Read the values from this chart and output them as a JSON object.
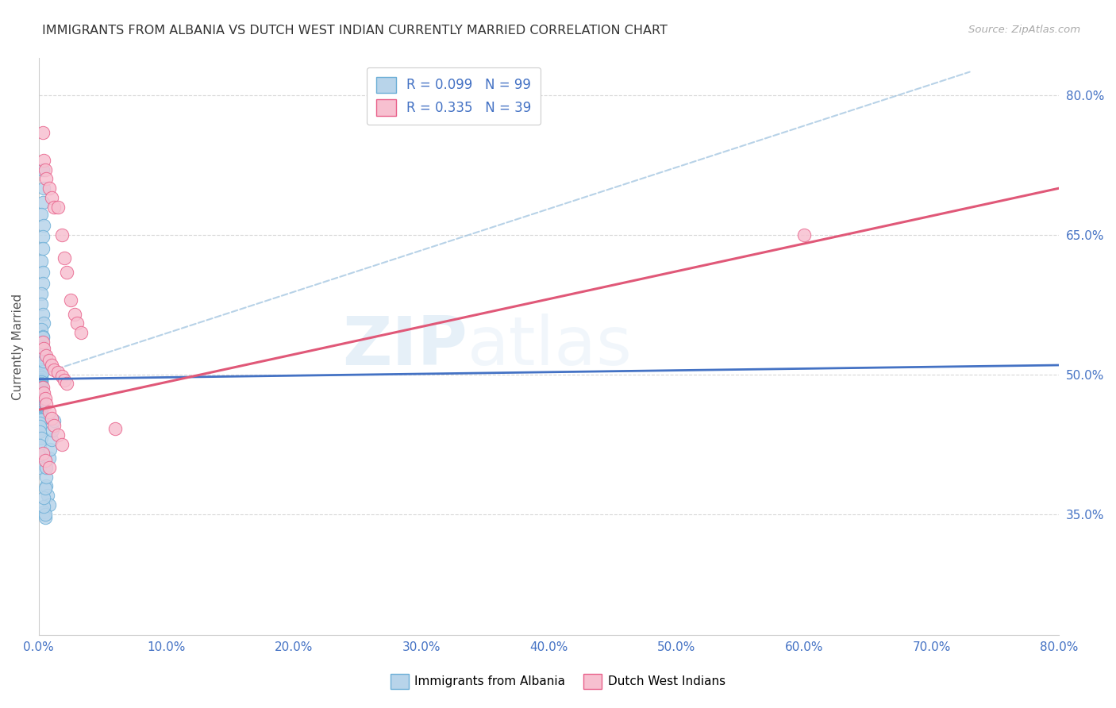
{
  "title": "IMMIGRANTS FROM ALBANIA VS DUTCH WEST INDIAN CURRENTLY MARRIED CORRELATION CHART",
  "source": "Source: ZipAtlas.com",
  "ylabel": "Currently Married",
  "xlim": [
    0.0,
    0.8
  ],
  "ylim": [
    0.22,
    0.84
  ],
  "yticks": [
    0.35,
    0.5,
    0.65,
    0.8
  ],
  "xticks": [
    0.0,
    0.1,
    0.2,
    0.3,
    0.4,
    0.5,
    0.6,
    0.7,
    0.8
  ],
  "legend_r1": "R = 0.099",
  "legend_n1": "N = 99",
  "legend_r2": "R = 0.335",
  "legend_n2": "N = 39",
  "color_albania_fill": "#b8d4ea",
  "color_albania_edge": "#6baed6",
  "color_dutch_fill": "#f7c0d0",
  "color_dutch_edge": "#e8608a",
  "color_albania_line": "#4472c4",
  "color_dutch_line": "#e05878",
  "color_dashed": "#a0c4e0",
  "watermark_zip": "ZIP",
  "watermark_atlas": "atlas",
  "albania_x": [
    0.003,
    0.004,
    0.003,
    0.002,
    0.004,
    0.003,
    0.003,
    0.002,
    0.003,
    0.003,
    0.002,
    0.002,
    0.003,
    0.004,
    0.002,
    0.003,
    0.002,
    0.002,
    0.002,
    0.002,
    0.002,
    0.003,
    0.002,
    0.002,
    0.001,
    0.002,
    0.002,
    0.002,
    0.002,
    0.002,
    0.003,
    0.002,
    0.002,
    0.002,
    0.002,
    0.002,
    0.001,
    0.002,
    0.002,
    0.002,
    0.002,
    0.002,
    0.002,
    0.002,
    0.002,
    0.002,
    0.001,
    0.001,
    0.002,
    0.002,
    0.001,
    0.001,
    0.002,
    0.002,
    0.002,
    0.002,
    0.001,
    0.001,
    0.002,
    0.001,
    0.002,
    0.002,
    0.002,
    0.001,
    0.002,
    0.002,
    0.001,
    0.002,
    0.002,
    0.001,
    0.001,
    0.002,
    0.001,
    0.001,
    0.001,
    0.002,
    0.001,
    0.001,
    0.001,
    0.006,
    0.007,
    0.008,
    0.004,
    0.005,
    0.005,
    0.004,
    0.004,
    0.005,
    0.006,
    0.006,
    0.008,
    0.009,
    0.01,
    0.011,
    0.012,
    0.003,
    0.003,
    0.004,
    0.004
  ],
  "albania_y": [
    0.72,
    0.7,
    0.685,
    0.672,
    0.66,
    0.648,
    0.635,
    0.622,
    0.61,
    0.598,
    0.587,
    0.576,
    0.565,
    0.555,
    0.548,
    0.541,
    0.535,
    0.529,
    0.524,
    0.519,
    0.514,
    0.509,
    0.505,
    0.501,
    0.499,
    0.497,
    0.496,
    0.495,
    0.494,
    0.493,
    0.503,
    0.492,
    0.49,
    0.489,
    0.488,
    0.487,
    0.486,
    0.485,
    0.484,
    0.483,
    0.482,
    0.481,
    0.48,
    0.479,
    0.478,
    0.477,
    0.476,
    0.475,
    0.474,
    0.473,
    0.472,
    0.471,
    0.47,
    0.469,
    0.468,
    0.467,
    0.466,
    0.465,
    0.464,
    0.463,
    0.462,
    0.461,
    0.46,
    0.459,
    0.458,
    0.457,
    0.456,
    0.455,
    0.454,
    0.453,
    0.452,
    0.451,
    0.448,
    0.444,
    0.438,
    0.432,
    0.424,
    0.414,
    0.4,
    0.38,
    0.37,
    0.36,
    0.352,
    0.346,
    0.35,
    0.358,
    0.368,
    0.378,
    0.39,
    0.4,
    0.41,
    0.42,
    0.43,
    0.44,
    0.45,
    0.54,
    0.53,
    0.522,
    0.514
  ],
  "dutch_x": [
    0.003,
    0.004,
    0.005,
    0.006,
    0.008,
    0.01,
    0.012,
    0.015,
    0.018,
    0.02,
    0.022,
    0.025,
    0.028,
    0.03,
    0.033,
    0.003,
    0.004,
    0.006,
    0.008,
    0.01,
    0.012,
    0.015,
    0.018,
    0.02,
    0.022,
    0.003,
    0.004,
    0.005,
    0.006,
    0.008,
    0.01,
    0.012,
    0.015,
    0.018,
    0.003,
    0.005,
    0.008,
    0.06,
    0.6
  ],
  "dutch_y": [
    0.76,
    0.73,
    0.72,
    0.71,
    0.7,
    0.69,
    0.68,
    0.68,
    0.65,
    0.625,
    0.61,
    0.58,
    0.565,
    0.555,
    0.545,
    0.535,
    0.528,
    0.52,
    0.515,
    0.51,
    0.505,
    0.502,
    0.498,
    0.494,
    0.49,
    0.486,
    0.48,
    0.474,
    0.468,
    0.46,
    0.453,
    0.445,
    0.435,
    0.425,
    0.415,
    0.408,
    0.4,
    0.442,
    0.65
  ],
  "albania_line_x0": 0.0,
  "albania_line_x1": 0.8,
  "albania_line_y0": 0.495,
  "albania_line_y1": 0.51,
  "dutch_line_x0": 0.0,
  "dutch_line_x1": 0.8,
  "dutch_line_y0": 0.462,
  "dutch_line_y1": 0.7,
  "dashed_line_x0": 0.001,
  "dashed_line_x1": 0.73,
  "dashed_line_y0": 0.5,
  "dashed_line_y1": 0.825
}
